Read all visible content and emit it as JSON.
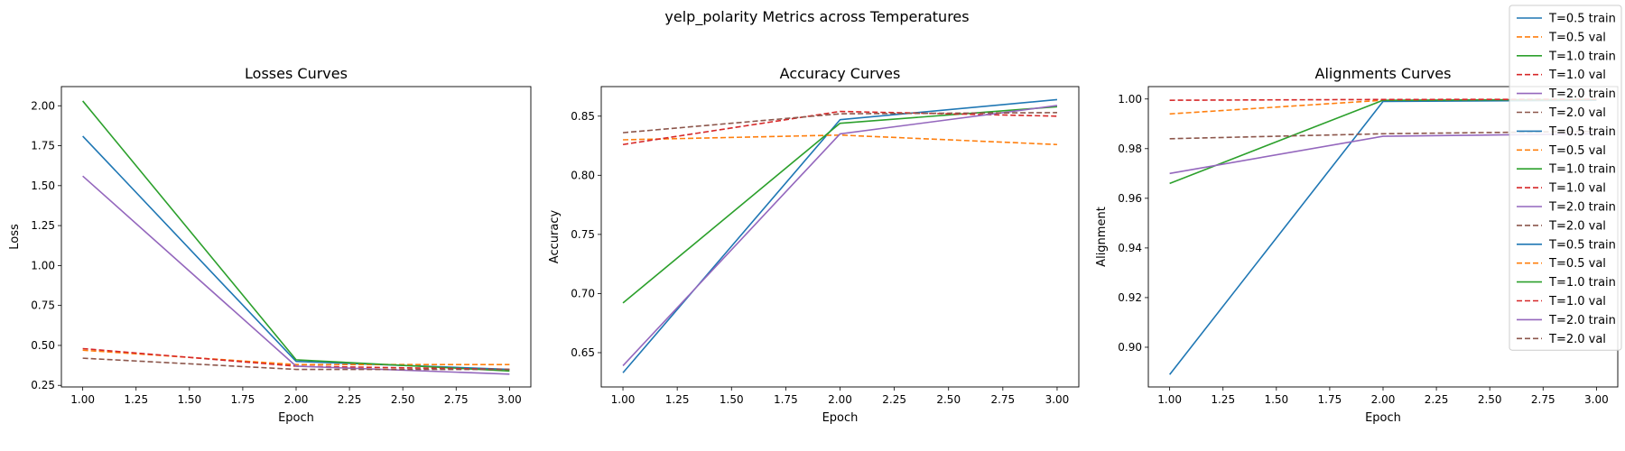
{
  "figure": {
    "suptitle": "yelp_polarity Metrics across Temperatures"
  },
  "colors": {
    "T0.5": "#1f77b4",
    "T0.5v": "#ff7f0e",
    "T1.0": "#2ca02c",
    "T1.0v": "#d62728",
    "T2.0": "#9467bd",
    "T2.0v": "#8c564b"
  },
  "legend": {
    "placement": "top-right",
    "entries": [
      {
        "label": "T=0.5 train",
        "color": "#1f77b4",
        "dash": false
      },
      {
        "label": "T=0.5 val",
        "color": "#ff7f0e",
        "dash": true
      },
      {
        "label": "T=1.0 train",
        "color": "#2ca02c",
        "dash": false
      },
      {
        "label": "T=1.0 val",
        "color": "#d62728",
        "dash": true
      },
      {
        "label": "T=2.0 train",
        "color": "#9467bd",
        "dash": false
      },
      {
        "label": "T=2.0 val",
        "color": "#8c564b",
        "dash": true
      },
      {
        "label": "T=0.5 train",
        "color": "#1f77b4",
        "dash": false
      },
      {
        "label": "T=0.5 val",
        "color": "#ff7f0e",
        "dash": true
      },
      {
        "label": "T=1.0 train",
        "color": "#2ca02c",
        "dash": false
      },
      {
        "label": "T=1.0 val",
        "color": "#d62728",
        "dash": true
      },
      {
        "label": "T=2.0 train",
        "color": "#9467bd",
        "dash": false
      },
      {
        "label": "T=2.0 val",
        "color": "#8c564b",
        "dash": true
      },
      {
        "label": "T=0.5 train",
        "color": "#1f77b4",
        "dash": false
      },
      {
        "label": "T=0.5 val",
        "color": "#ff7f0e",
        "dash": true
      },
      {
        "label": "T=1.0 train",
        "color": "#2ca02c",
        "dash": false
      },
      {
        "label": "T=1.0 val",
        "color": "#d62728",
        "dash": true
      },
      {
        "label": "T=2.0 train",
        "color": "#9467bd",
        "dash": false
      },
      {
        "label": "T=2.0 val",
        "color": "#8c564b",
        "dash": true
      }
    ]
  },
  "chart_data": [
    {
      "type": "line",
      "title": "Losses Curves",
      "xlabel": "Epoch",
      "ylabel": "Loss",
      "x": [
        1,
        2,
        3
      ],
      "xlim": [
        0.9,
        3.1
      ],
      "ylim": [
        0.24,
        2.12
      ],
      "xticks": [
        1.0,
        1.25,
        1.5,
        1.75,
        2.0,
        2.25,
        2.5,
        2.75,
        3.0
      ],
      "yticks": [
        0.25,
        0.5,
        0.75,
        1.0,
        1.25,
        1.5,
        1.75,
        2.0
      ],
      "xtick_labels": [
        "1.00",
        "1.25",
        "1.50",
        "1.75",
        "2.00",
        "2.25",
        "2.50",
        "2.75",
        "3.00"
      ],
      "ytick_labels": [
        "0.25",
        "0.50",
        "0.75",
        "1.00",
        "1.25",
        "1.50",
        "1.75",
        "2.00"
      ],
      "grid": false,
      "series": [
        {
          "name": "T=0.5 train",
          "color": "#1f77b4",
          "dash": false,
          "values": [
            1.81,
            0.4,
            0.35
          ]
        },
        {
          "name": "T=0.5 val",
          "color": "#ff7f0e",
          "dash": true,
          "values": [
            0.47,
            0.38,
            0.38
          ]
        },
        {
          "name": "T=1.0 train",
          "color": "#2ca02c",
          "dash": false,
          "values": [
            2.03,
            0.41,
            0.34
          ]
        },
        {
          "name": "T=1.0 val",
          "color": "#d62728",
          "dash": true,
          "values": [
            0.48,
            0.37,
            0.35
          ]
        },
        {
          "name": "T=2.0 train",
          "color": "#9467bd",
          "dash": false,
          "values": [
            1.56,
            0.37,
            0.32
          ]
        },
        {
          "name": "T=2.0 val",
          "color": "#8c564b",
          "dash": true,
          "values": [
            0.42,
            0.35,
            0.35
          ]
        }
      ]
    },
    {
      "type": "line",
      "title": "Accuracy Curves",
      "xlabel": "Epoch",
      "ylabel": "Accuracy",
      "x": [
        1,
        2,
        3
      ],
      "xlim": [
        0.9,
        3.1
      ],
      "ylim": [
        0.621,
        0.875
      ],
      "xticks": [
        1.0,
        1.25,
        1.5,
        1.75,
        2.0,
        2.25,
        2.5,
        2.75,
        3.0
      ],
      "yticks": [
        0.65,
        0.7,
        0.75,
        0.8,
        0.85
      ],
      "xtick_labels": [
        "1.00",
        "1.25",
        "1.50",
        "1.75",
        "2.00",
        "2.25",
        "2.50",
        "2.75",
        "3.00"
      ],
      "ytick_labels": [
        "0.65",
        "0.70",
        "0.75",
        "0.80",
        "0.85"
      ],
      "grid": false,
      "series": [
        {
          "name": "T=0.5 train",
          "color": "#1f77b4",
          "dash": false,
          "values": [
            0.633,
            0.847,
            0.864
          ]
        },
        {
          "name": "T=0.5 val",
          "color": "#ff7f0e",
          "dash": true,
          "values": [
            0.83,
            0.834,
            0.826
          ]
        },
        {
          "name": "T=1.0 train",
          "color": "#2ca02c",
          "dash": false,
          "values": [
            0.692,
            0.844,
            0.858
          ]
        },
        {
          "name": "T=1.0 val",
          "color": "#d62728",
          "dash": true,
          "values": [
            0.826,
            0.854,
            0.85
          ]
        },
        {
          "name": "T=2.0 train",
          "color": "#9467bd",
          "dash": false,
          "values": [
            0.639,
            0.835,
            0.859
          ]
        },
        {
          "name": "T=2.0 val",
          "color": "#8c564b",
          "dash": true,
          "values": [
            0.836,
            0.852,
            0.853
          ]
        }
      ]
    },
    {
      "type": "line",
      "title": "Alignments Curves",
      "xlabel": "Epoch",
      "ylabel": "Alignment",
      "x": [
        1,
        2,
        3
      ],
      "xlim": [
        0.9,
        3.1
      ],
      "ylim": [
        0.884,
        1.005
      ],
      "xticks": [
        1.0,
        1.25,
        1.5,
        1.75,
        2.0,
        2.25,
        2.5,
        2.75,
        3.0
      ],
      "yticks": [
        0.9,
        0.92,
        0.94,
        0.96,
        0.98,
        1.0
      ],
      "xtick_labels": [
        "1.00",
        "1.25",
        "1.50",
        "1.75",
        "2.00",
        "2.25",
        "2.50",
        "2.75",
        "3.00"
      ],
      "ytick_labels": [
        "0.90",
        "0.92",
        "0.94",
        "0.96",
        "0.98",
        "1.00"
      ],
      "grid": false,
      "series": [
        {
          "name": "T=0.5 train",
          "color": "#1f77b4",
          "dash": false,
          "values": [
            0.889,
            0.999,
            0.9995
          ]
        },
        {
          "name": "T=0.5 val",
          "color": "#ff7f0e",
          "dash": true,
          "values": [
            0.994,
            0.9995,
            0.9998
          ]
        },
        {
          "name": "T=1.0 train",
          "color": "#2ca02c",
          "dash": false,
          "values": [
            0.966,
            0.9995,
            0.9998
          ]
        },
        {
          "name": "T=1.0 val",
          "color": "#d62728",
          "dash": true,
          "values": [
            0.9995,
            0.9998,
            0.9999
          ]
        },
        {
          "name": "T=2.0 train",
          "color": "#9467bd",
          "dash": false,
          "values": [
            0.97,
            0.985,
            0.986
          ]
        },
        {
          "name": "T=2.0 val",
          "color": "#8c564b",
          "dash": true,
          "values": [
            0.984,
            0.986,
            0.987
          ]
        }
      ]
    }
  ]
}
